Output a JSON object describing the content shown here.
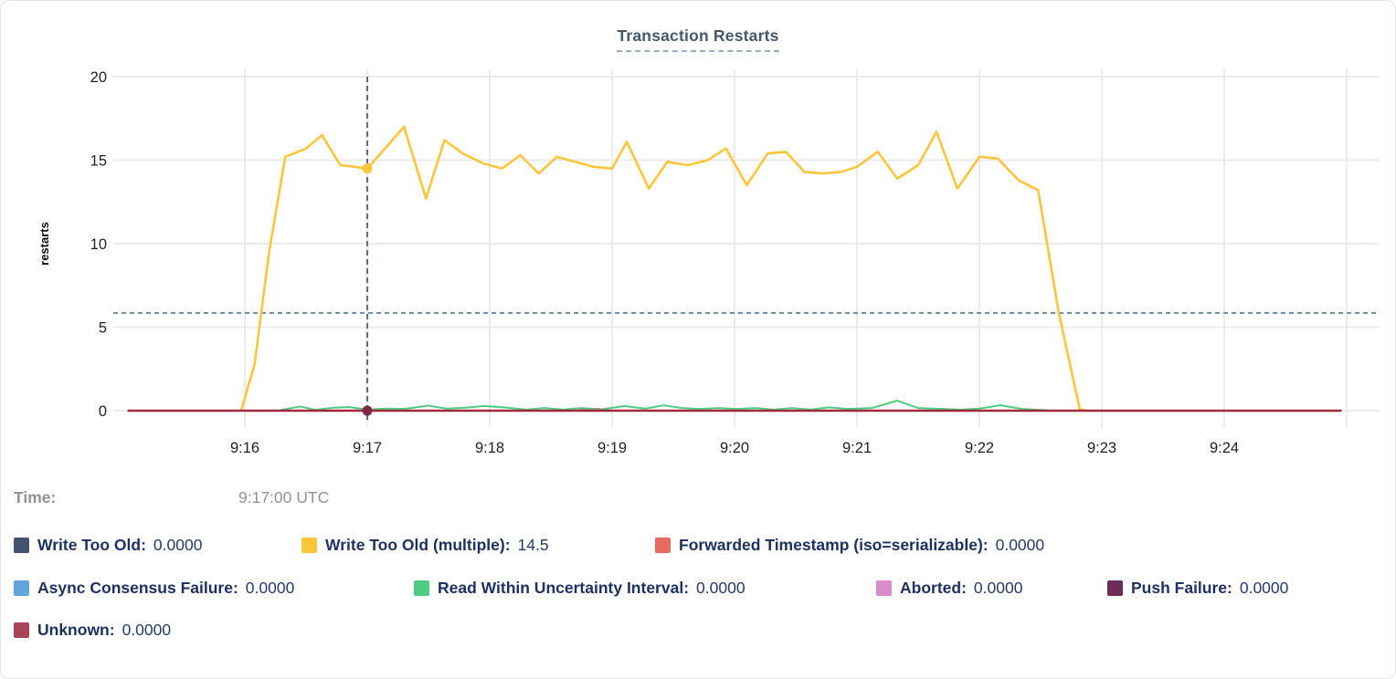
{
  "chart": {
    "title": "Transaction Restarts"
  },
  "tooltip": {
    "time_label": "Time:",
    "time_value": "9:17:00 UTC"
  },
  "legend": {
    "rows": [
      {
        "items": [
          {
            "label": "Write Too Old:",
            "value": "0.0000",
            "color": "#44536e"
          },
          {
            "label": "Write Too Old (multiple):",
            "value": "14.5",
            "color": "#fdc53a"
          },
          {
            "label": "Forwarded Timestamp (iso=serializable):",
            "value": "0.0000",
            "color": "#e8695f"
          }
        ]
      },
      {
        "items": [
          {
            "label": "Async Consensus Failure:",
            "value": "0.0000",
            "color": "#62a3d9"
          },
          {
            "label": "Read Within Uncertainty Interval:",
            "value": "0.0000",
            "color": "#4ecb81"
          },
          {
            "label": "Aborted:",
            "value": "0.0000",
            "color": "#d98ccb"
          },
          {
            "label": "Push Failure:",
            "value": "0.0000",
            "color": "#6b2d57"
          }
        ]
      },
      {
        "items": [
          {
            "label": "Unknown:",
            "value": "0.0000",
            "color": "#a84358"
          }
        ]
      }
    ]
  },
  "colors": {
    "grid": "#ebebee",
    "axis_text": "#1f2023",
    "title_text": "#44586e",
    "legend_text": "#1e3163",
    "time_text": "#8f9297"
  },
  "chart_data": {
    "type": "line",
    "title": "Transaction Restarts",
    "ylabel": "restarts",
    "xlabel": "",
    "ylim": [
      0,
      20
    ],
    "y_ticks": [
      0,
      5,
      10,
      15,
      20
    ],
    "x_unit": "minutes after 9:00 UTC",
    "x_range_minutes": [
      15.05,
      24.95
    ],
    "x_gridlines": [
      16,
      17,
      18,
      19,
      20,
      21,
      22,
      23,
      24,
      25
    ],
    "x_ticks": [
      {
        "t": 16,
        "label": "9:16"
      },
      {
        "t": 17,
        "label": "9:17"
      },
      {
        "t": 18,
        "label": "9:18"
      },
      {
        "t": 19,
        "label": "9:19"
      },
      {
        "t": 20,
        "label": "9:20"
      },
      {
        "t": 21,
        "label": "9:21"
      },
      {
        "t": 22,
        "label": "9:22"
      },
      {
        "t": 23,
        "label": "9:23"
      },
      {
        "t": 24,
        "label": "9:24"
      }
    ],
    "grid": true,
    "legend_position": "bottom",
    "avg_line": {
      "value": 5.85,
      "color": "#6886a5",
      "style": "dashed"
    },
    "hover": {
      "t": 17,
      "time": "9:17:00 UTC",
      "guide_color": "#335468",
      "dots": [
        {
          "series_id": "write-too-old-multiple",
          "v": 14.5,
          "color": "#fdc53a"
        },
        {
          "series_id": "unknown",
          "v": 0,
          "color": "#7d2840"
        }
      ]
    },
    "series": [
      {
        "id": "write-too-old",
        "name": "Write Too Old",
        "color": "#44536e",
        "width": 1.5,
        "points": [
          [
            15.05,
            0
          ],
          [
            24.95,
            0
          ]
        ]
      },
      {
        "id": "async-consensus-failure",
        "name": "Async Consensus Failure",
        "color": "#62a3d9",
        "width": 1.5,
        "points": [
          [
            15.05,
            0
          ],
          [
            24.95,
            0
          ]
        ]
      },
      {
        "id": "aborted",
        "name": "Aborted",
        "color": "#d98ccb",
        "width": 1.5,
        "points": [
          [
            15.05,
            0
          ],
          [
            24.95,
            0
          ]
        ]
      },
      {
        "id": "push-failure",
        "name": "Push Failure",
        "color": "#6b2d57",
        "width": 1.5,
        "points": [
          [
            15.05,
            0
          ],
          [
            24.95,
            0
          ]
        ]
      },
      {
        "id": "forwarded-timestamp",
        "name": "Forwarded Timestamp (iso=serializable)",
        "color": "#e8695f",
        "width": 2,
        "points": [
          [
            15.05,
            0
          ],
          [
            18.7,
            0
          ],
          [
            18.8,
            0.12
          ],
          [
            18.9,
            0.1
          ],
          [
            19.0,
            0
          ],
          [
            24.95,
            0
          ]
        ]
      },
      {
        "id": "read-within-uncertainty-interval",
        "name": "Read Within Uncertainty Interval",
        "color": "#4ecb81",
        "width": 2,
        "points": [
          [
            16.3,
            0.05
          ],
          [
            16.45,
            0.25
          ],
          [
            16.58,
            0.05
          ],
          [
            16.72,
            0.18
          ],
          [
            16.85,
            0.22
          ],
          [
            17.0,
            0.06
          ],
          [
            17.15,
            0.12
          ],
          [
            17.3,
            0.1
          ],
          [
            17.5,
            0.3
          ],
          [
            17.65,
            0.12
          ],
          [
            17.8,
            0.18
          ],
          [
            17.95,
            0.28
          ],
          [
            18.12,
            0.2
          ],
          [
            18.3,
            0.06
          ],
          [
            18.45,
            0.16
          ],
          [
            18.6,
            0.06
          ],
          [
            18.75,
            0.16
          ],
          [
            18.9,
            0.06
          ],
          [
            19.1,
            0.28
          ],
          [
            19.27,
            0.12
          ],
          [
            19.42,
            0.32
          ],
          [
            19.57,
            0.16
          ],
          [
            19.72,
            0.1
          ],
          [
            19.87,
            0.16
          ],
          [
            20.02,
            0.1
          ],
          [
            20.17,
            0.16
          ],
          [
            20.32,
            0.06
          ],
          [
            20.47,
            0.16
          ],
          [
            20.62,
            0.06
          ],
          [
            20.77,
            0.2
          ],
          [
            20.92,
            0.1
          ],
          [
            21.12,
            0.16
          ],
          [
            21.33,
            0.6
          ],
          [
            21.5,
            0.16
          ],
          [
            21.7,
            0.1
          ],
          [
            21.85,
            0.06
          ],
          [
            22.0,
            0.12
          ],
          [
            22.17,
            0.33
          ],
          [
            22.35,
            0.1
          ],
          [
            22.55,
            0.03
          ]
        ]
      },
      {
        "id": "write-too-old-multiple",
        "name": "Write Too Old (multiple)",
        "color": "#fdc53a",
        "width": 2.6,
        "points": [
          [
            15.97,
            0
          ],
          [
            16.08,
            2.8
          ],
          [
            16.2,
            9.6
          ],
          [
            16.33,
            15.2
          ],
          [
            16.5,
            15.7
          ],
          [
            16.63,
            16.5
          ],
          [
            16.78,
            14.7
          ],
          [
            16.9,
            14.6
          ],
          [
            17.0,
            14.5
          ],
          [
            17.17,
            15.9
          ],
          [
            17.3,
            17.0
          ],
          [
            17.48,
            12.7
          ],
          [
            17.63,
            16.2
          ],
          [
            17.78,
            15.4
          ],
          [
            17.95,
            14.8
          ],
          [
            18.1,
            14.5
          ],
          [
            18.25,
            15.3
          ],
          [
            18.4,
            14.2
          ],
          [
            18.55,
            15.2
          ],
          [
            18.7,
            14.9
          ],
          [
            18.85,
            14.6
          ],
          [
            19.0,
            14.5
          ],
          [
            19.12,
            16.1
          ],
          [
            19.3,
            13.3
          ],
          [
            19.45,
            14.9
          ],
          [
            19.62,
            14.7
          ],
          [
            19.78,
            15.0
          ],
          [
            19.93,
            15.7
          ],
          [
            20.1,
            13.5
          ],
          [
            20.27,
            15.4
          ],
          [
            20.42,
            15.5
          ],
          [
            20.57,
            14.3
          ],
          [
            20.72,
            14.2
          ],
          [
            20.87,
            14.3
          ],
          [
            21.0,
            14.6
          ],
          [
            21.17,
            15.5
          ],
          [
            21.33,
            13.9
          ],
          [
            21.5,
            14.7
          ],
          [
            21.65,
            16.7
          ],
          [
            21.82,
            13.3
          ],
          [
            22.0,
            15.2
          ],
          [
            22.15,
            15.1
          ],
          [
            22.32,
            13.8
          ],
          [
            22.48,
            13.2
          ],
          [
            22.65,
            5.8
          ],
          [
            22.82,
            0.1
          ],
          [
            22.87,
            0
          ]
        ]
      },
      {
        "id": "unknown",
        "name": "Unknown",
        "color": "#a12b3d",
        "width": 2.6,
        "points": [
          [
            15.05,
            0
          ],
          [
            24.95,
            0
          ]
        ]
      }
    ]
  }
}
